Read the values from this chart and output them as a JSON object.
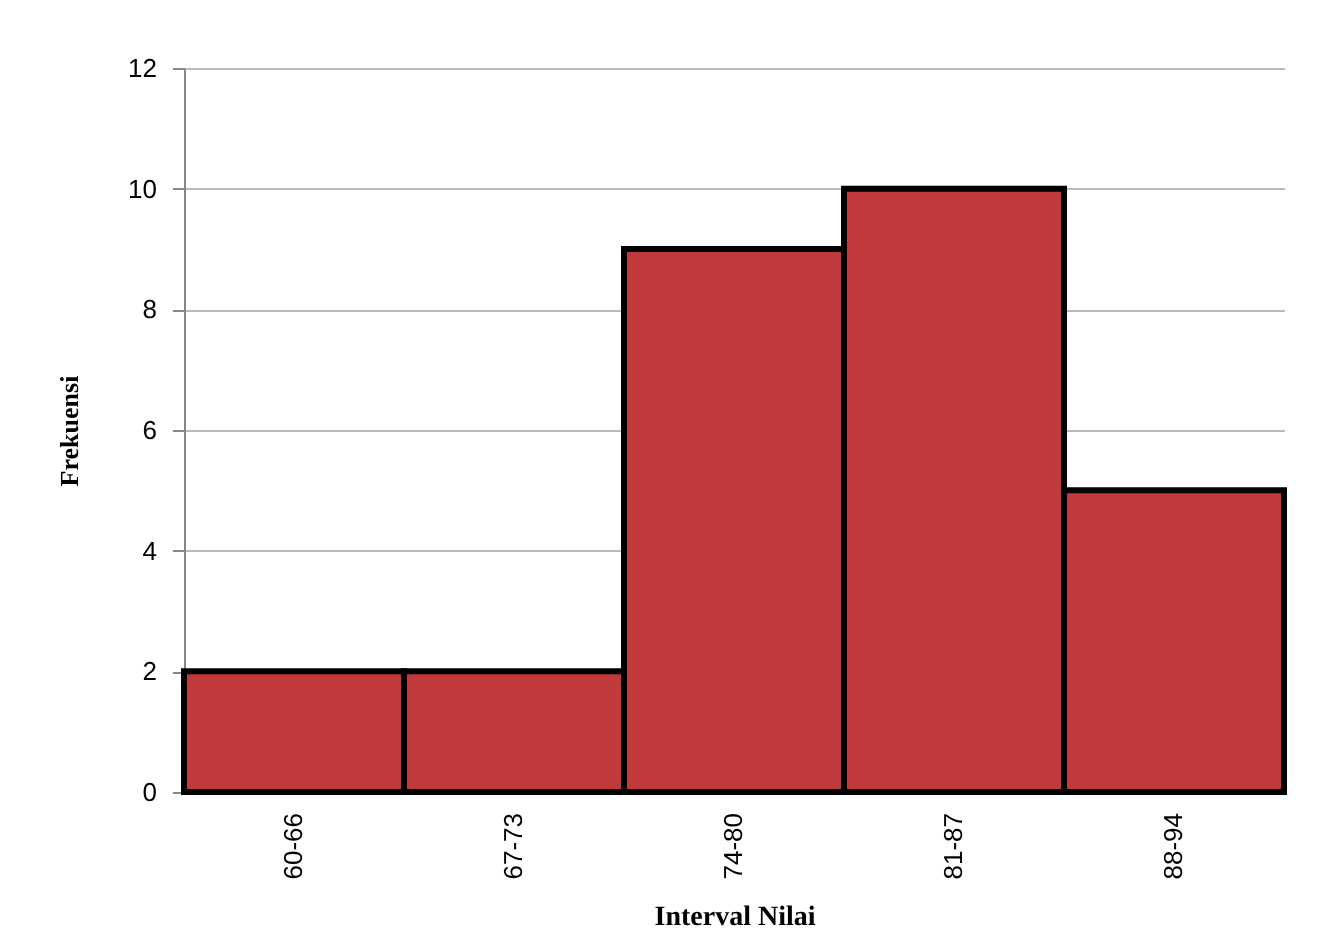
{
  "chart_data": {
    "type": "bar",
    "xlabel": "Interval Nilai",
    "ylabel": "Frekuensi",
    "categories": [
      "60-66",
      "67-73",
      "74-80",
      "81-87",
      "88-94"
    ],
    "values": [
      2,
      2,
      9,
      10,
      5
    ],
    "color": "#c0393b",
    "ylim": [
      0,
      12
    ],
    "yticks": [
      0,
      2,
      4,
      6,
      8,
      10,
      12
    ],
    "grid": "y"
  }
}
